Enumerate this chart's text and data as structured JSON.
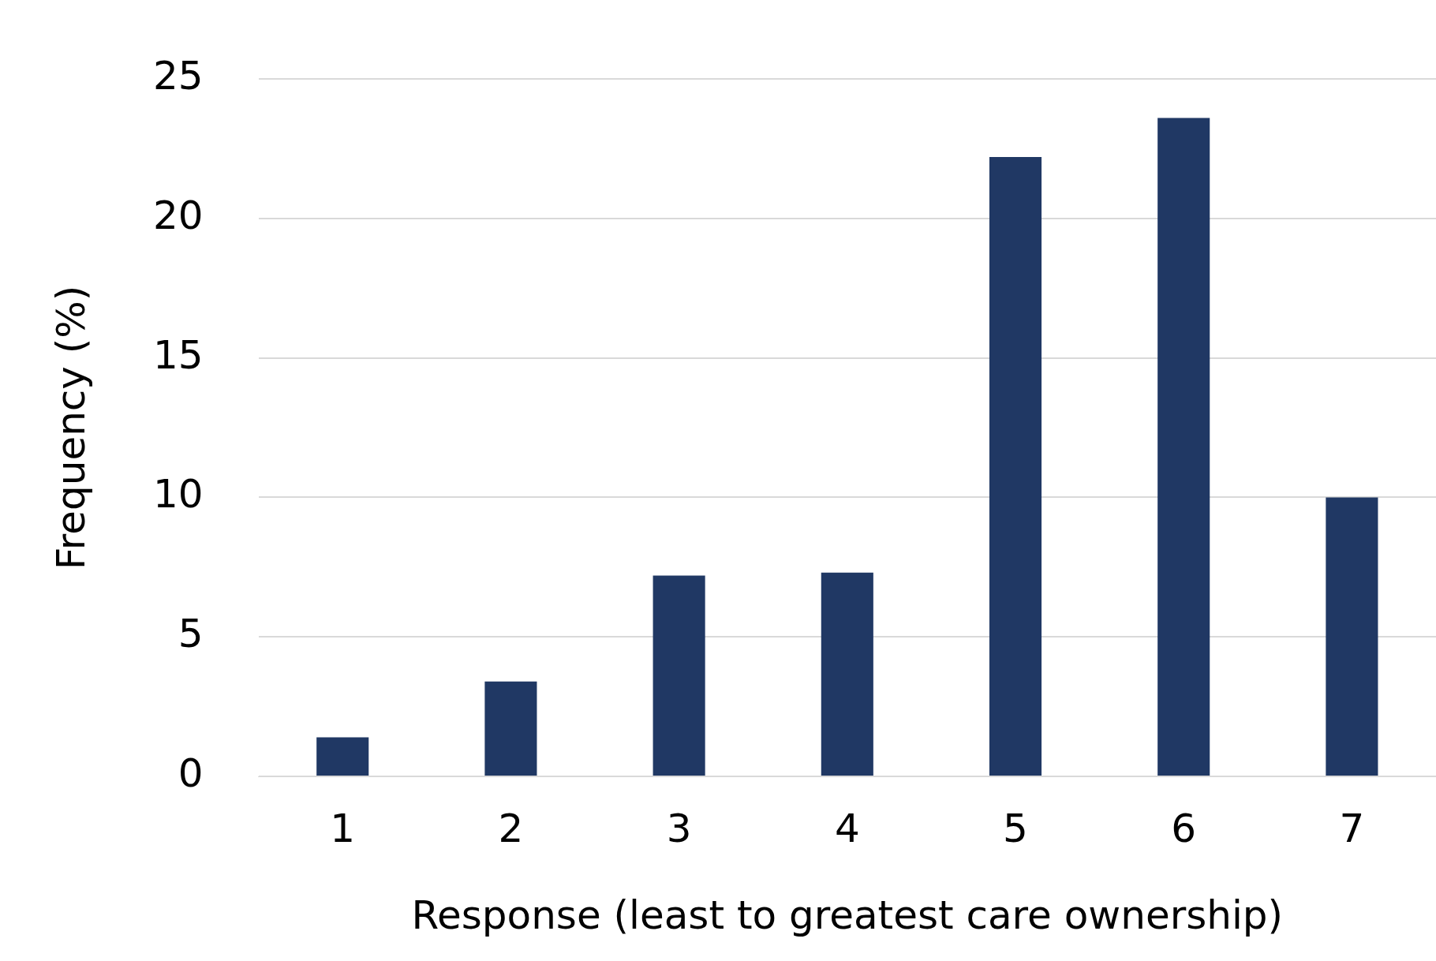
{
  "chart_data": {
    "type": "bar",
    "xlabel": "Response (least to greatest care ownership)",
    "ylabel": "Frequency (%)",
    "categories": [
      "1",
      "2",
      "3",
      "4",
      "5",
      "6",
      "7"
    ],
    "values": [
      1.4,
      3.4,
      7.2,
      7.3,
      22.2,
      23.6,
      10.0
    ],
    "color": "#203864",
    "ylim": [
      0,
      25
    ],
    "yticks": [
      0,
      5,
      10,
      15,
      20,
      25
    ],
    "grid": "y",
    "legend": false
  }
}
